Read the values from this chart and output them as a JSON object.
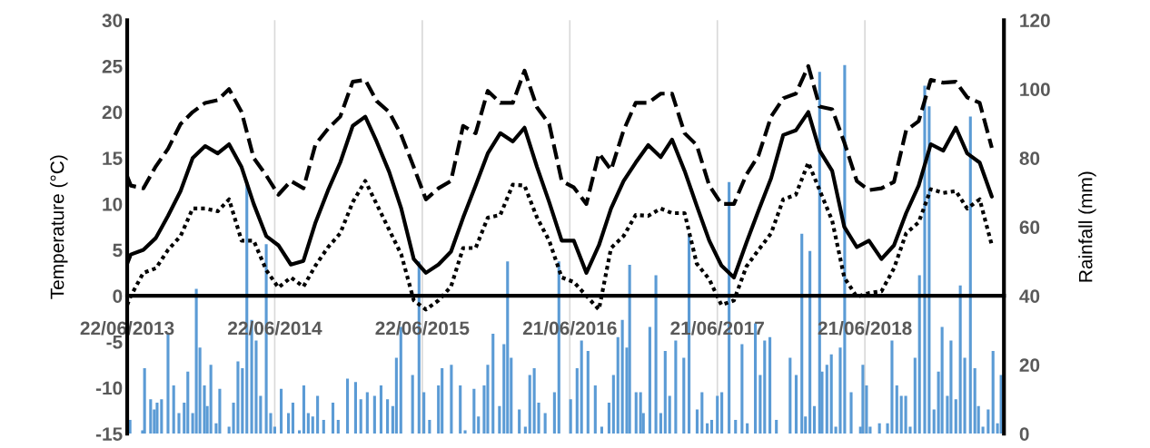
{
  "chart_data": {
    "type": "line",
    "ylabel": "Temperature (°C)",
    "y2label": "Rainfall (mm)",
    "xlim": [
      "2013-06-22",
      "2019-05-31"
    ],
    "xticks": [
      {
        "value": "2013-06-22",
        "label": "22/06/2013"
      },
      {
        "value": "2014-06-22",
        "label": "22/06/2014"
      },
      {
        "value": "2015-06-22",
        "label": "22/06/2015"
      },
      {
        "value": "2016-06-21",
        "label": "21/06/2016"
      },
      {
        "value": "2017-06-21",
        "label": "21/06/2017"
      },
      {
        "value": "2018-06-21",
        "label": "21/06/2018"
      }
    ],
    "ylim": [
      -15,
      30
    ],
    "yticks": [
      -15,
      -10,
      -5,
      0,
      5,
      10,
      15,
      20,
      25,
      30
    ],
    "y2lim": [
      0,
      120
    ],
    "y2ticks": [
      0,
      20,
      40,
      60,
      80,
      100,
      120
    ],
    "grid": "x",
    "x": [
      "2013-06-22",
      "2013-07-01",
      "2013-08-01",
      "2013-09-01",
      "2013-10-01",
      "2013-11-01",
      "2013-12-01",
      "2014-01-01",
      "2014-02-01",
      "2014-03-01",
      "2014-04-01",
      "2014-05-01",
      "2014-06-01",
      "2014-07-01",
      "2014-08-01",
      "2014-09-01",
      "2014-10-01",
      "2014-11-01",
      "2014-12-01",
      "2015-01-01",
      "2015-02-01",
      "2015-03-01",
      "2015-04-01",
      "2015-05-01",
      "2015-06-01",
      "2015-07-01",
      "2015-08-01",
      "2015-09-01",
      "2015-10-01",
      "2015-11-01",
      "2015-12-01",
      "2016-01-01",
      "2016-02-01",
      "2016-03-01",
      "2016-04-01",
      "2016-05-01",
      "2016-06-01",
      "2016-07-01",
      "2016-08-01",
      "2016-09-01",
      "2016-10-01",
      "2016-11-01",
      "2016-12-01",
      "2017-01-01",
      "2017-02-01",
      "2017-03-01",
      "2017-04-01",
      "2017-05-01",
      "2017-06-01",
      "2017-07-01",
      "2017-08-01",
      "2017-09-01",
      "2017-10-01",
      "2017-11-01",
      "2017-12-01",
      "2018-01-01",
      "2018-02-01",
      "2018-03-01",
      "2018-04-01",
      "2018-05-01",
      "2018-06-01",
      "2018-07-01",
      "2018-08-01",
      "2018-09-01",
      "2018-10-01",
      "2018-11-01",
      "2018-12-01",
      "2019-01-01",
      "2019-02-01",
      "2019-03-01",
      "2019-04-01",
      "2019-05-01"
    ],
    "series": [
      {
        "color": "#000000",
        "line_style": "dashed",
        "values": [
          13,
          12,
          11.7,
          14.1,
          16,
          18.7,
          20,
          21,
          21.3,
          22.5,
          20,
          15,
          13.1,
          11,
          12.5,
          11.7,
          16.5,
          18.2,
          19.5,
          23.3,
          23.5,
          21.2,
          20,
          17.5,
          14,
          10.5,
          11.7,
          12.5,
          18.5,
          17.7,
          22.3,
          21,
          21,
          24.5,
          20.5,
          18.7,
          12.5,
          11.8,
          10,
          15.5,
          13.7,
          18,
          21,
          21,
          22,
          22,
          17.7,
          16.4,
          12,
          10,
          10,
          13.2,
          15.3,
          19.5,
          21.5,
          22,
          25,
          20.6,
          20.3,
          16.7,
          12.5,
          11.5,
          11.7,
          12.4,
          18,
          19,
          23.5,
          23.2,
          23.3,
          21.6,
          21,
          16.1
        ]
      },
      {
        "color": "#000000",
        "line_style": "solid",
        "values": [
          3.5,
          4.5,
          5,
          6.3,
          8.7,
          11.4,
          15,
          16.3,
          15.5,
          16.5,
          14,
          10,
          6.5,
          5.5,
          3.4,
          3.8,
          8,
          11.5,
          14.5,
          18.5,
          19.5,
          16.8,
          13.5,
          9.5,
          4,
          2.5,
          3.4,
          4.8,
          8.5,
          12,
          15.5,
          17.7,
          16.8,
          18.3,
          14,
          10.2,
          6,
          6,
          2.5,
          5.5,
          9.5,
          12.5,
          14.5,
          16.4,
          15.1,
          17,
          13.6,
          9.8,
          6,
          3.3,
          2,
          5.8,
          9.3,
          12.8,
          17.5,
          18,
          20,
          15.8,
          13.6,
          7.5,
          5.3,
          6,
          4,
          5.5,
          9,
          12,
          16.5,
          15.8,
          18.3,
          15.5,
          14.5,
          10.8
        ]
      },
      {
        "color": "#000000",
        "line_style": "dotted",
        "values": [
          -1,
          0,
          2.5,
          3,
          5,
          6.5,
          9.5,
          9.5,
          9.2,
          10.5,
          6,
          6,
          2.8,
          0.9,
          2,
          1,
          3.3,
          5.3,
          6.8,
          10.2,
          12.5,
          10,
          7.2,
          4.5,
          -0.5,
          -1.5,
          -0.5,
          1,
          5.2,
          5.2,
          8.5,
          8.8,
          12.1,
          12,
          8.5,
          6,
          2,
          1.5,
          0,
          -1.5,
          5.2,
          6.5,
          8.8,
          8.7,
          9.5,
          9,
          9,
          3.5,
          1.8,
          -1,
          -0.5,
          3.2,
          5,
          6.8,
          10.5,
          11,
          14.5,
          11.5,
          8.2,
          2,
          -0.1,
          0.3,
          0.5,
          3,
          6.8,
          8,
          11.6,
          11.2,
          11.4,
          9.5,
          10.5,
          5.5
        ]
      },
      {
        "type": "bar",
        "axis": "y2",
        "color": "#5b9bd5",
        "x": [
          "2013-06-29",
          "2013-07-30",
          "2013-08-04",
          "2013-08-19",
          "2013-08-28",
          "2013-09-04",
          "2013-09-15",
          "2013-10-01",
          "2013-10-15",
          "2013-10-28",
          "2013-11-10",
          "2013-11-19",
          "2013-12-01",
          "2013-12-10",
          "2013-12-19",
          "2013-12-30",
          "2014-01-06",
          "2014-01-15",
          "2014-01-28",
          "2014-02-06",
          "2014-03-01",
          "2014-03-12",
          "2014-03-23",
          "2014-04-03",
          "2014-04-14",
          "2014-04-26",
          "2014-05-07",
          "2014-05-18",
          "2014-06-01",
          "2014-06-12",
          "2014-06-22",
          "2014-07-08",
          "2014-07-26",
          "2014-08-06",
          "2014-08-22",
          "2014-09-02",
          "2014-09-13",
          "2014-09-24",
          "2014-10-06",
          "2014-10-21",
          "2014-11-13",
          "2014-11-26",
          "2014-12-19",
          "2015-01-08",
          "2015-01-21",
          "2015-02-06",
          "2015-02-24",
          "2015-03-12",
          "2015-03-28",
          "2015-04-10",
          "2015-04-19",
          "2015-04-30",
          "2015-05-29",
          "2015-06-14",
          "2015-06-26",
          "2015-07-10",
          "2015-08-01",
          "2015-08-10",
          "2015-09-02",
          "2015-09-24",
          "2015-10-06",
          "2015-10-28",
          "2015-11-08",
          "2015-11-22",
          "2015-12-01",
          "2015-12-14",
          "2015-12-30",
          "2016-01-10",
          "2016-01-19",
          "2016-01-28",
          "2016-02-17",
          "2016-03-03",
          "2016-03-14",
          "2016-03-25",
          "2016-04-05",
          "2016-04-21",
          "2016-05-14",
          "2016-05-25",
          "2016-06-23",
          "2016-07-09",
          "2016-07-20",
          "2016-08-05",
          "2016-08-23",
          "2016-09-08",
          "2016-09-26",
          "2016-10-07",
          "2016-10-18",
          "2016-10-29",
          "2016-11-09",
          "2016-11-16",
          "2016-12-02",
          "2016-12-13",
          "2016-12-20",
          "2017-01-05",
          "2017-01-20",
          "2017-02-01",
          "2017-02-12",
          "2017-02-23",
          "2017-03-10",
          "2017-03-30",
          "2017-04-12",
          "2017-05-02",
          "2017-05-14",
          "2017-05-27",
          "2017-06-07",
          "2017-06-21",
          "2017-07-02",
          "2017-07-20",
          "2017-08-05",
          "2017-08-21",
          "2017-09-03",
          "2017-09-23",
          "2017-10-05",
          "2017-10-16",
          "2017-10-29",
          "2017-11-14",
          "2017-12-18",
          "2018-01-02",
          "2018-01-16",
          "2018-01-25",
          "2018-02-05",
          "2018-02-16",
          "2018-03-01",
          "2018-03-07",
          "2018-03-19",
          "2018-03-30",
          "2018-04-10",
          "2018-04-21",
          "2018-05-02",
          "2018-05-18",
          "2018-06-10",
          "2018-06-16",
          "2018-06-25",
          "2018-07-04",
          "2018-07-27",
          "2018-08-16",
          "2018-08-27",
          "2018-09-08",
          "2018-09-19",
          "2018-09-30",
          "2018-10-11",
          "2018-10-23",
          "2018-11-03",
          "2018-11-16",
          "2018-11-27",
          "2018-12-09",
          "2018-12-20",
          "2018-12-29",
          "2019-01-11",
          "2019-01-20",
          "2019-02-01",
          "2019-02-12",
          "2019-02-23",
          "2019-03-09",
          "2019-03-20",
          "2019-03-29",
          "2019-04-09",
          "2019-04-22",
          "2019-05-04",
          "2019-05-15",
          "2019-05-24"
        ],
        "values": [
          4,
          1,
          19,
          10,
          7,
          9,
          10,
          29,
          14,
          6,
          9,
          18,
          6,
          42,
          25,
          14,
          8,
          20,
          3,
          13,
          2,
          9,
          21,
          19,
          73,
          33,
          27,
          11,
          55,
          6,
          2,
          13,
          6,
          9,
          1,
          14,
          6,
          5,
          11,
          4,
          9,
          4,
          16,
          15,
          10,
          12,
          11,
          14,
          10,
          8,
          22,
          31,
          17,
          50,
          12,
          4,
          14,
          19,
          20,
          14,
          1,
          13,
          5,
          14,
          20,
          29,
          8,
          26,
          50,
          22,
          7,
          2,
          17,
          19,
          9,
          6,
          12,
          50,
          10,
          19,
          27,
          24,
          14,
          2,
          9,
          17,
          28,
          33,
          25,
          49,
          12,
          12,
          6,
          31,
          46,
          6,
          24,
          11,
          27,
          22,
          58,
          7,
          12,
          3,
          4,
          11,
          12,
          73,
          4,
          26,
          3,
          32,
          17,
          27,
          28,
          4,
          22,
          17,
          58,
          5,
          53,
          8,
          105,
          18,
          20,
          23,
          2,
          25,
          107,
          12,
          2,
          20,
          14,
          2,
          3,
          3,
          27,
          14,
          11,
          11,
          2,
          22,
          46,
          101,
          95,
          7,
          18,
          31,
          11,
          27,
          10,
          43,
          22,
          92,
          19,
          8,
          2,
          7,
          24,
          3,
          17
        ]
      }
    ]
  }
}
